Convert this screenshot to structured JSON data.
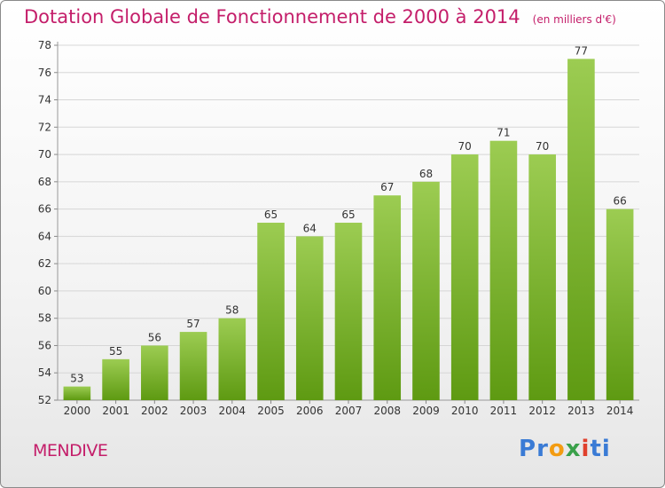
{
  "title": "Dotation Globale de Fonctionnement de 2000 à 2014",
  "subtitle": "(en milliers d'€)",
  "commune": "MENDIVE",
  "logo": {
    "letters": [
      "P",
      "r",
      "o",
      "x",
      "i",
      "t",
      "i"
    ],
    "colors": [
      "#3a7bd5",
      "#3a7bd5",
      "#f39c12",
      "#3aa04a",
      "#e0402d",
      "#3a7bd5",
      "#3a7bd5"
    ]
  },
  "colors": {
    "title": "#c41e6a",
    "bar_top": "#9ccc52",
    "bar_bottom": "#5e9a12"
  },
  "chart_data": {
    "type": "bar",
    "categories": [
      "2000",
      "2001",
      "2002",
      "2003",
      "2004",
      "2005",
      "2006",
      "2007",
      "2008",
      "2009",
      "2010",
      "2011",
      "2012",
      "2013",
      "2014"
    ],
    "values": [
      53,
      55,
      56,
      57,
      58,
      65,
      64,
      65,
      67,
      68,
      70,
      71,
      70,
      77,
      66
    ],
    "title": "Dotation Globale de Fonctionnement de 2000 à 2014",
    "xlabel": "",
    "ylabel": "",
    "ylim": [
      52,
      78
    ],
    "yticks": [
      52,
      54,
      56,
      58,
      60,
      62,
      64,
      66,
      68,
      70,
      72,
      74,
      76,
      78
    ],
    "grid": true,
    "legend": "none"
  }
}
